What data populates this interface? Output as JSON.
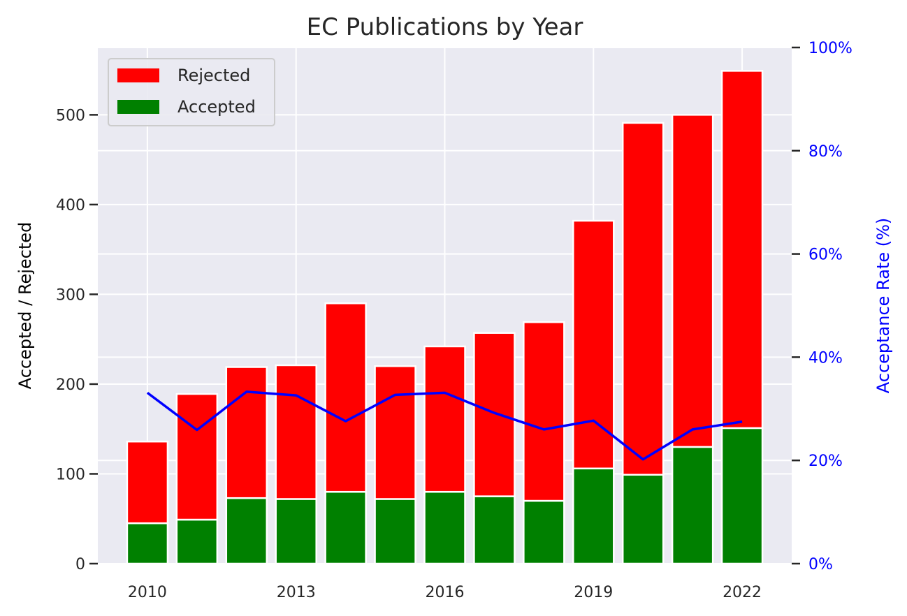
{
  "chart_data": {
    "type": "bar",
    "subtype": "stacked bar with secondary-axis line",
    "title": "EC Publications by Year",
    "xlabel": "",
    "ylabel": "Accepted / Rejected",
    "y2label": "Acceptance Rate (%)",
    "x": [
      2010,
      2011,
      2012,
      2013,
      2014,
      2015,
      2016,
      2017,
      2018,
      2019,
      2020,
      2021,
      2022
    ],
    "x_tick_labels": [
      "2010",
      "2013",
      "2016",
      "2019",
      "2022"
    ],
    "x_tick_values": [
      2010,
      2013,
      2016,
      2019,
      2022
    ],
    "y_ticks": [
      0,
      100,
      200,
      300,
      400,
      500
    ],
    "y_tick_labels": [
      "0",
      "100",
      "200",
      "300",
      "400",
      "500"
    ],
    "y2_ticks": [
      0,
      20,
      40,
      60,
      80,
      100
    ],
    "y2_tick_labels": [
      "0%",
      "20%",
      "40%",
      "60%",
      "80%",
      "100%"
    ],
    "ylim": [
      0,
      575
    ],
    "y2lim": [
      0,
      100
    ],
    "grid": true,
    "legend_position": "top-left",
    "series": [
      {
        "name": "Accepted",
        "kind": "bar",
        "color": "#008000",
        "values": [
          45,
          49,
          73,
          72,
          80,
          72,
          80,
          75,
          70,
          106,
          99,
          130,
          151
        ]
      },
      {
        "name": "Rejected",
        "kind": "bar",
        "color": "#ff0000",
        "values": [
          91,
          140,
          146,
          149,
          210,
          148,
          162,
          182,
          199,
          276,
          392,
          370,
          398
        ]
      },
      {
        "kind": "line",
        "axis": "right",
        "color": "#0000ff",
        "values": [
          33.1,
          25.9,
          33.3,
          32.6,
          27.6,
          32.7,
          33.1,
          29.2,
          26.0,
          27.7,
          20.2,
          26.0,
          27.5
        ]
      }
    ],
    "colors": {
      "background": "#eaeaf2",
      "grid": "#ffffff",
      "right_axis": "#0000ff",
      "text": "#262626"
    }
  }
}
